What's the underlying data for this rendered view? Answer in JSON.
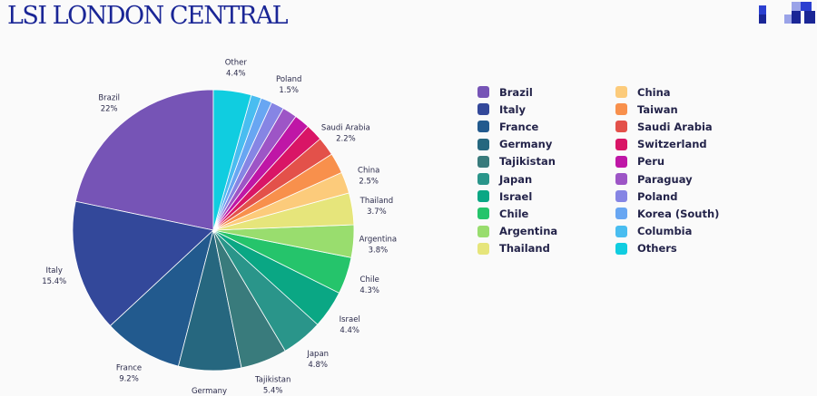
{
  "header": {
    "title": "LSI LONDON CENTRAL",
    "logo": "lsi-checker-logo"
  },
  "chart_data": {
    "type": "pie",
    "title": "",
    "slices": [
      {
        "label": "Brazil",
        "value": 22,
        "value_text": "22%",
        "color": "#7654b6"
      },
      {
        "label": "Italy",
        "value": 15.4,
        "value_text": "15.4%",
        "color": "#33489a"
      },
      {
        "label": "France",
        "value": 9.2,
        "value_text": "9.2%",
        "color": "#225a8e"
      },
      {
        "label": "Germany",
        "value": 7.3,
        "value_text": "7.3%",
        "color": "#26677f"
      },
      {
        "label": "Tajikistan",
        "value": 5.4,
        "value_text": "5.4%",
        "color": "#397b7c"
      },
      {
        "label": "Japan",
        "value": 4.8,
        "value_text": "4.8%",
        "color": "#2a958a"
      },
      {
        "label": "Israel",
        "value": 4.4,
        "value_text": "4.4%",
        "color": "#0aa784"
      },
      {
        "label": "Chile",
        "value": 4.3,
        "value_text": "4.3%",
        "color": "#25c46b"
      },
      {
        "label": "Argentina",
        "value": 3.8,
        "value_text": "3.8%",
        "color": "#99dd6e"
      },
      {
        "label": "Thailand",
        "value": 3.7,
        "value_text": "3.7%",
        "color": "#e6e57b"
      },
      {
        "label": "China",
        "value": 2.5,
        "value_text": "2.5%",
        "color": "#fccb7b"
      },
      {
        "label": "Taiwan",
        "value": 2.4,
        "value_text": "",
        "color": "#f8904c"
      },
      {
        "label": "Saudi Arabia",
        "value": 2.2,
        "value_text": "2.2%",
        "color": "#e3514a"
      },
      {
        "label": "Switzerland",
        "value": 2.0,
        "value_text": "",
        "color": "#d91566"
      },
      {
        "label": "Peru",
        "value": 1.8,
        "value_text": "",
        "color": "#bf16a6"
      },
      {
        "label": "Paraguay",
        "value": 1.7,
        "value_text": "",
        "color": "#9d55c6"
      },
      {
        "label": "Poland",
        "value": 1.5,
        "value_text": "1.5%",
        "color": "#8685e4"
      },
      {
        "label": "Korea (South)",
        "value": 1.3,
        "value_text": "",
        "color": "#68a6f2"
      },
      {
        "label": "Columbia",
        "value": 1.2,
        "value_text": "",
        "color": "#49bdf0"
      },
      {
        "label": "Other",
        "legend_label": "Others",
        "value": 4.4,
        "value_text": "4.4%",
        "color": "#10cde0"
      }
    ],
    "legend_position": "right"
  },
  "legend": {
    "columns": [
      [
        "Brazil",
        "Italy",
        "France",
        "Germany",
        "Tajikistan",
        "Japan",
        "Israel",
        "Chile",
        "Argentina",
        "Thailand"
      ],
      [
        "China",
        "Taiwan",
        "Saudi Arabia",
        "Switzerland",
        "Peru",
        "Paraguay",
        "Poland",
        "Korea (South)",
        "Columbia",
        "Others"
      ]
    ]
  }
}
